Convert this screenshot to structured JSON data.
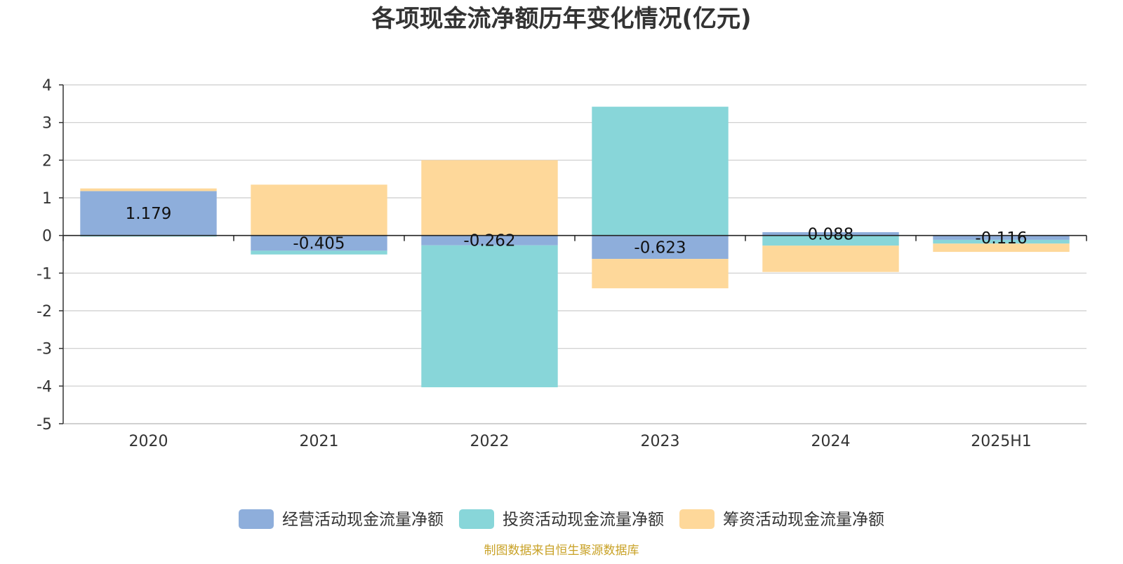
{
  "chart_data": {
    "type": "bar",
    "stacked": true,
    "title": "各项现金流净额历年变化情况(亿元)",
    "xlabel": "",
    "ylabel": "",
    "categories": [
      "2020",
      "2021",
      "2022",
      "2023",
      "2024",
      "2025H1"
    ],
    "ylim": [
      -5,
      4
    ],
    "yticks": [
      4,
      3,
      2,
      1,
      0,
      -1,
      -2,
      -3,
      -4,
      -5
    ],
    "grid": true,
    "legend_position": "bottom",
    "series": [
      {
        "name": "经营活动现金流量净额",
        "color": "#8eaedb",
        "values": [
          1.179,
          -0.405,
          -0.262,
          -0.623,
          0.088,
          -0.116
        ],
        "labels": [
          "1.179",
          "-0.405",
          "-0.262",
          "-0.623",
          "0.088",
          "-0.116"
        ]
      },
      {
        "name": "投资活动现金流量净额",
        "color": "#88d6d9",
        "values": [
          -0.03,
          -0.1,
          -3.77,
          3.42,
          -0.27,
          -0.1
        ],
        "labels": null
      },
      {
        "name": "筹资活动现金流量净额",
        "color": "#fed89a",
        "values": [
          0.07,
          1.35,
          2.0,
          -0.78,
          -0.7,
          -0.22
        ],
        "labels": null
      }
    ]
  },
  "source_note": "制图数据来自恒生聚源数据库"
}
